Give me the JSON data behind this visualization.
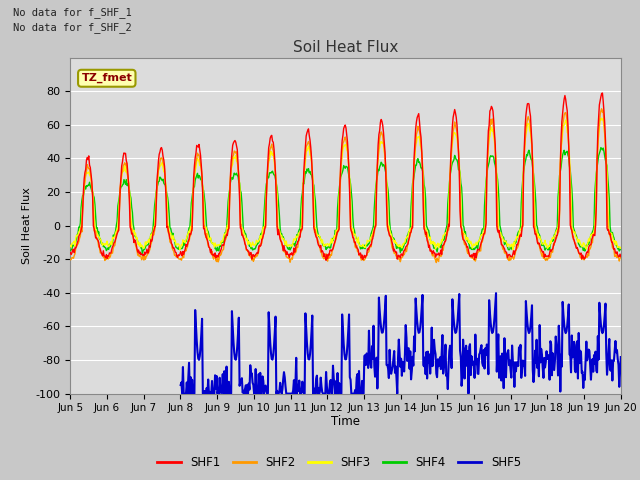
{
  "title": "Soil Heat Flux",
  "ylabel": "Soil Heat Flux",
  "xlabel": "Time",
  "ylim": [
    -100,
    100
  ],
  "note1": "No data for f_SHF_1",
  "note2": "No data for f_SHF_2",
  "legend_label": "TZ_fmet",
  "series_colors": {
    "SHF1": "#ff0000",
    "SHF2": "#ff9900",
    "SHF3": "#ffff00",
    "SHF4": "#00cc00",
    "SHF5": "#0000cd"
  },
  "background_color": "#c8c8c8",
  "plot_bg_color": "#dcdcdc",
  "x_tick_labels": [
    "Jun 5",
    "Jun 6",
    "Jun 7",
    "Jun 8",
    "Jun 9",
    "Jun 10",
    "Jun 11",
    "Jun 12",
    "Jun 13",
    "Jun 14",
    "Jun 15",
    "Jun 16",
    "Jun 17",
    "Jun 18",
    "Jun 19",
    "Jun 20"
  ],
  "yticks": [
    -100,
    -80,
    -60,
    -40,
    -20,
    0,
    20,
    40,
    60,
    80
  ]
}
